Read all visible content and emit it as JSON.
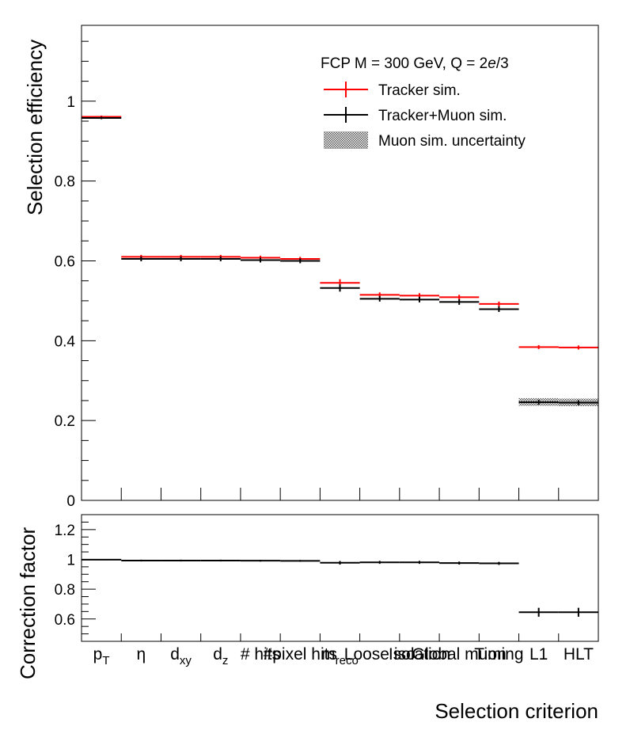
{
  "chart_data": [
    {
      "panel": "upper",
      "type": "step",
      "categories": [
        "p_T",
        "η",
        "d_xy",
        "d_z",
        "# hits",
        "# pixel hits",
        "m_reco",
        "Loose iso",
        "Isolation",
        "Global muon",
        "Timing",
        "L1",
        "HLT"
      ],
      "category_labels": [
        {
          "main": "p",
          "sub": "T"
        },
        {
          "main": "η",
          "sub": ""
        },
        {
          "main": "d",
          "sub": "xy"
        },
        {
          "main": "d",
          "sub": "z"
        },
        {
          "main": "# hits",
          "sub": ""
        },
        {
          "main": "#pixel hits",
          "sub": ""
        },
        {
          "main": "m",
          "sub": "reco"
        },
        {
          "main": "Loose iso",
          "sub": ""
        },
        {
          "main": "Isolation",
          "sub": ""
        },
        {
          "main": "Global muon",
          "sub": ""
        },
        {
          "main": "Timing",
          "sub": ""
        },
        {
          "main": "L1",
          "sub": ""
        },
        {
          "main": "HLT",
          "sub": ""
        }
      ],
      "series": [
        {
          "name": "Tracker sim.",
          "color": "#ff0000",
          "values": [
            0.961,
            0.61,
            0.61,
            0.61,
            0.608,
            0.605,
            0.545,
            0.515,
            0.513,
            0.509,
            0.492,
            0.384,
            0.383
          ],
          "errors": [
            0.003,
            0.005,
            0.005,
            0.005,
            0.005,
            0.005,
            0.009,
            0.006,
            0.006,
            0.006,
            0.006,
            0.005,
            0.005
          ]
        },
        {
          "name": "Tracker+Muon sim.",
          "color": "#000000",
          "values": [
            0.958,
            0.605,
            0.605,
            0.605,
            0.602,
            0.6,
            0.532,
            0.505,
            0.503,
            0.497,
            0.479,
            0.246,
            0.245
          ],
          "errors": [
            0.003,
            0.006,
            0.006,
            0.006,
            0.006,
            0.006,
            0.009,
            0.007,
            0.007,
            0.007,
            0.007,
            0.006,
            0.006
          ]
        }
      ],
      "uncertainty_band": {
        "name": "Muon sim. uncertainty",
        "lo": [
          null,
          null,
          null,
          null,
          null,
          null,
          null,
          null,
          null,
          null,
          null,
          0.237,
          0.236
        ],
        "hi": [
          null,
          null,
          null,
          null,
          null,
          null,
          null,
          null,
          null,
          null,
          null,
          0.256,
          0.255
        ]
      },
      "legend_header": "FCP M = 300 GeV, Q = 2e/3",
      "legend_position": "top-right",
      "ylabel": "Selection efficiency",
      "ylim": [
        0,
        1.19
      ],
      "yticks": [
        0,
        0.2,
        0.4,
        0.6,
        0.8,
        1
      ],
      "ytick_labels": [
        "0",
        "0.2",
        "0.4",
        "0.6",
        "0.8",
        "1"
      ]
    },
    {
      "panel": "lower",
      "type": "step",
      "series": [
        {
          "name": "Correction factor",
          "color": "#000000",
          "values": [
            0.998,
            0.992,
            0.992,
            0.992,
            0.991,
            0.99,
            0.977,
            0.98,
            0.98,
            0.975,
            0.973,
            0.645,
            0.645
          ],
          "errors": [
            0.004,
            0.006,
            0.006,
            0.006,
            0.006,
            0.006,
            0.012,
            0.01,
            0.01,
            0.01,
            0.01,
            0.03,
            0.03
          ]
        }
      ],
      "ylabel": "Correction factor",
      "ylim": [
        0.45,
        1.3
      ],
      "yticks": [
        0.6,
        0.8,
        1,
        1.2
      ],
      "ytick_labels": [
        "0.6",
        "0.8",
        "1",
        "1.2"
      ],
      "xlabel": "Selection criterion"
    }
  ]
}
